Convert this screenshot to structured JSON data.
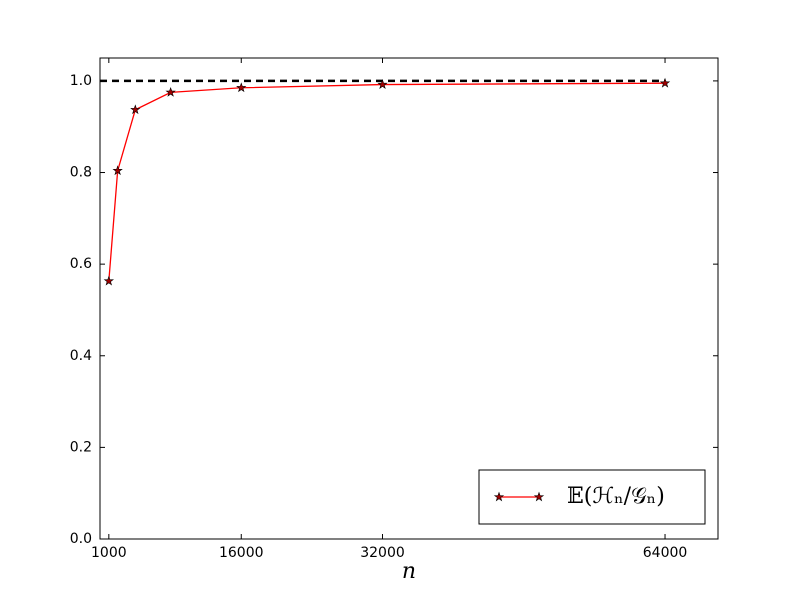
{
  "chart_data": {
    "type": "line",
    "x_label": "n",
    "x": [
      1000,
      2000,
      4000,
      8000,
      16000,
      32000,
      64000
    ],
    "series": [
      {
        "name": "𝔼(ℋₙ/𝒢ₙ)",
        "color": "#ff0000",
        "marker": "star",
        "values": [
          0.563,
          0.804,
          0.937,
          0.975,
          0.985,
          0.992,
          0.995
        ]
      }
    ],
    "reference_line": {
      "y": 1,
      "x": [
        0,
        64000
      ],
      "color": "#000000",
      "style": "dashed"
    },
    "xlim": [
      0,
      70000
    ],
    "xticks": [
      1000,
      16000,
      32000,
      64000
    ],
    "ylim": [
      0,
      1.05
    ],
    "yticks": [
      {
        "value": 0,
        "label": "0.0"
      },
      0.2,
      0.4,
      0.6,
      0.8,
      {
        "value": 1,
        "label": "1.0"
      }
    ],
    "legend": "lower right"
  }
}
